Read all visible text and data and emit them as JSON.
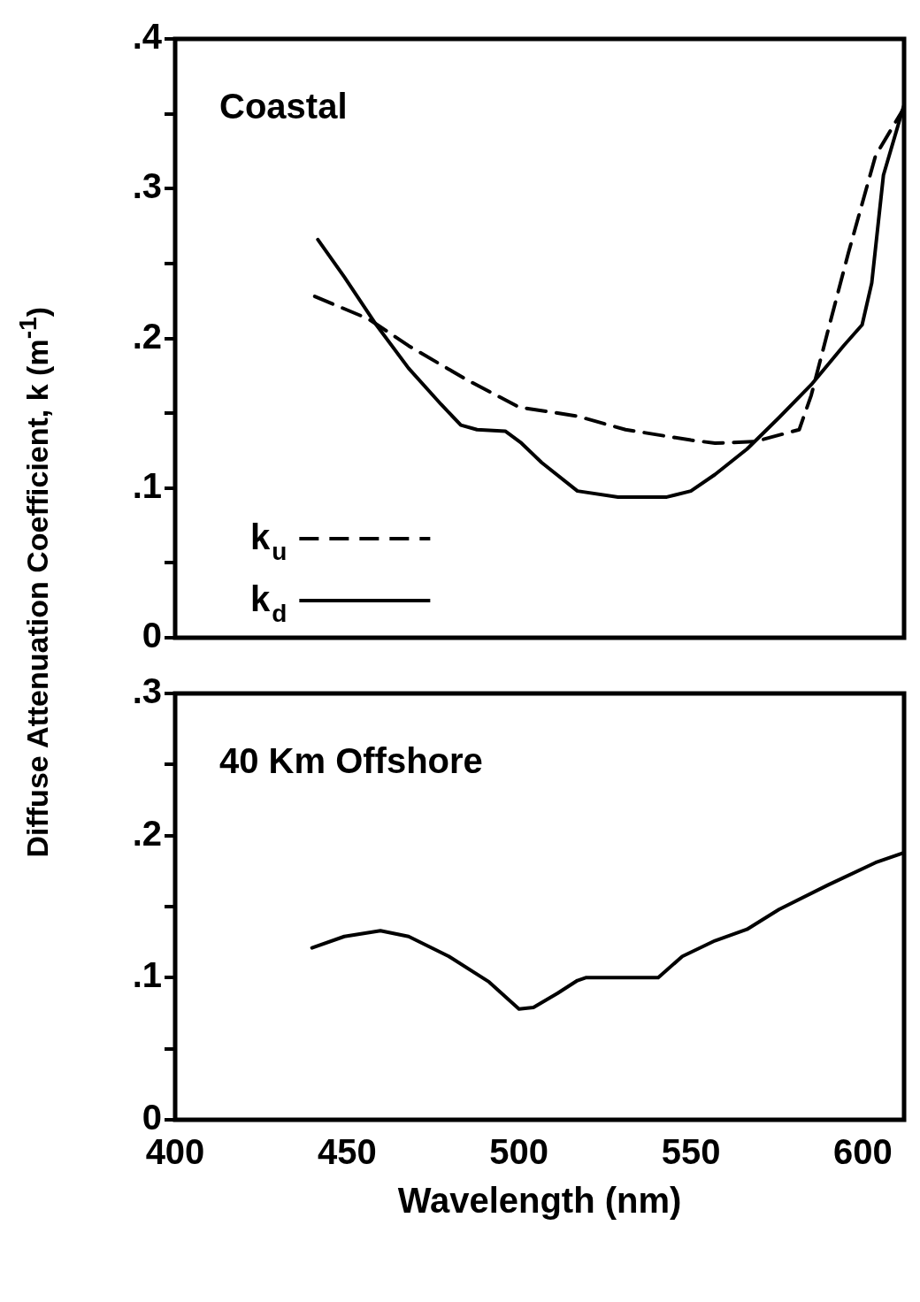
{
  "chart_data": [
    {
      "type": "line",
      "title": "Coastal",
      "ylabel": "Diffuse Attenuation Coefficient, k (m$^{-1}$)",
      "xlim": [
        400,
        612
      ],
      "xticks": [
        400,
        450,
        500,
        550,
        600
      ],
      "ylim": [
        0,
        0.4
      ],
      "yticks": [
        {
          "value": 0,
          "label": "0"
        },
        {
          "value": 0.05,
          "label": null
        },
        {
          "value": 0.1,
          "label": ".1"
        },
        {
          "value": 0.15,
          "label": null
        },
        {
          "value": 0.2,
          "label": ".2"
        },
        {
          "value": 0.25,
          "label": null
        },
        {
          "value": 0.3,
          "label": ".3"
        },
        {
          "value": 0.35,
          "label": null
        },
        {
          "value": 0.4,
          "label": ".4"
        }
      ],
      "tick_labels": "y",
      "legend": "bottom left",
      "marker": "none",
      "series": [
        {
          "name": "k$_{u}$",
          "color": "#000000",
          "line_style": "dashed",
          "x": [
            440.6,
            456.2,
            467.9,
            484.3,
            500,
            517,
            531,
            550,
            557,
            568.6,
            581.5,
            585,
            590.2,
            595.8,
            603.7,
            612
          ],
          "values": [
            0.228,
            0.213,
            0.195,
            0.173,
            0.154,
            0.148,
            0.139,
            0.132,
            0.13,
            0.131,
            0.139,
            0.162,
            0.208,
            0.257,
            0.322,
            0.354
          ]
        },
        {
          "name": "k$_{d}$",
          "color": "#000000",
          "line_style": "solid",
          "x": [
            441.5,
            449.2,
            458.5,
            467.9,
            477.3,
            483.1,
            487.8,
            496,
            500.7,
            506.6,
            517,
            528.8,
            543,
            550,
            557,
            566.3,
            575.6,
            585,
            594.4,
            599.8,
            602.6,
            606,
            612
          ],
          "values": [
            0.266,
            0.241,
            0.209,
            0.18,
            0.156,
            0.142,
            0.139,
            0.138,
            0.13,
            0.117,
            0.098,
            0.094,
            0.094,
            0.098,
            0.109,
            0.126,
            0.147,
            0.169,
            0.195,
            0.209,
            0.237,
            0.309,
            0.356
          ]
        }
      ]
    },
    {
      "type": "line",
      "title": "40 Km Offshore",
      "xlabel": "Wavelength (nm)",
      "xlim": [
        400,
        612
      ],
      "xticks": [
        400,
        450,
        500,
        550,
        600
      ],
      "ylim": [
        0,
        0.3
      ],
      "yticks": [
        {
          "value": 0,
          "label": "0"
        },
        {
          "value": 0.05,
          "label": null
        },
        {
          "value": 0.1,
          "label": ".1"
        },
        {
          "value": 0.15,
          "label": null
        },
        {
          "value": 0.2,
          "label": ".2"
        },
        {
          "value": 0.25,
          "label": null
        },
        {
          "value": 0.3,
          "label": ".3"
        }
      ],
      "marker": "none",
      "series": [
        {
          "color": "#000000",
          "line_style": "solid",
          "x": [
            439.8,
            449.2,
            459.7,
            467.9,
            479.6,
            491.3,
            500,
            504.2,
            511.2,
            517,
            519.4,
            540.5,
            547.5,
            557,
            566.3,
            575.6,
            589.7,
            603.7,
            612
          ],
          "values": [
            0.121,
            0.129,
            0.133,
            0.129,
            0.115,
            0.097,
            0.078,
            0.079,
            0.089,
            0.098,
            0.1,
            0.1,
            0.115,
            0.126,
            0.134,
            0.148,
            0.165,
            0.181,
            0.188
          ]
        }
      ]
    }
  ]
}
